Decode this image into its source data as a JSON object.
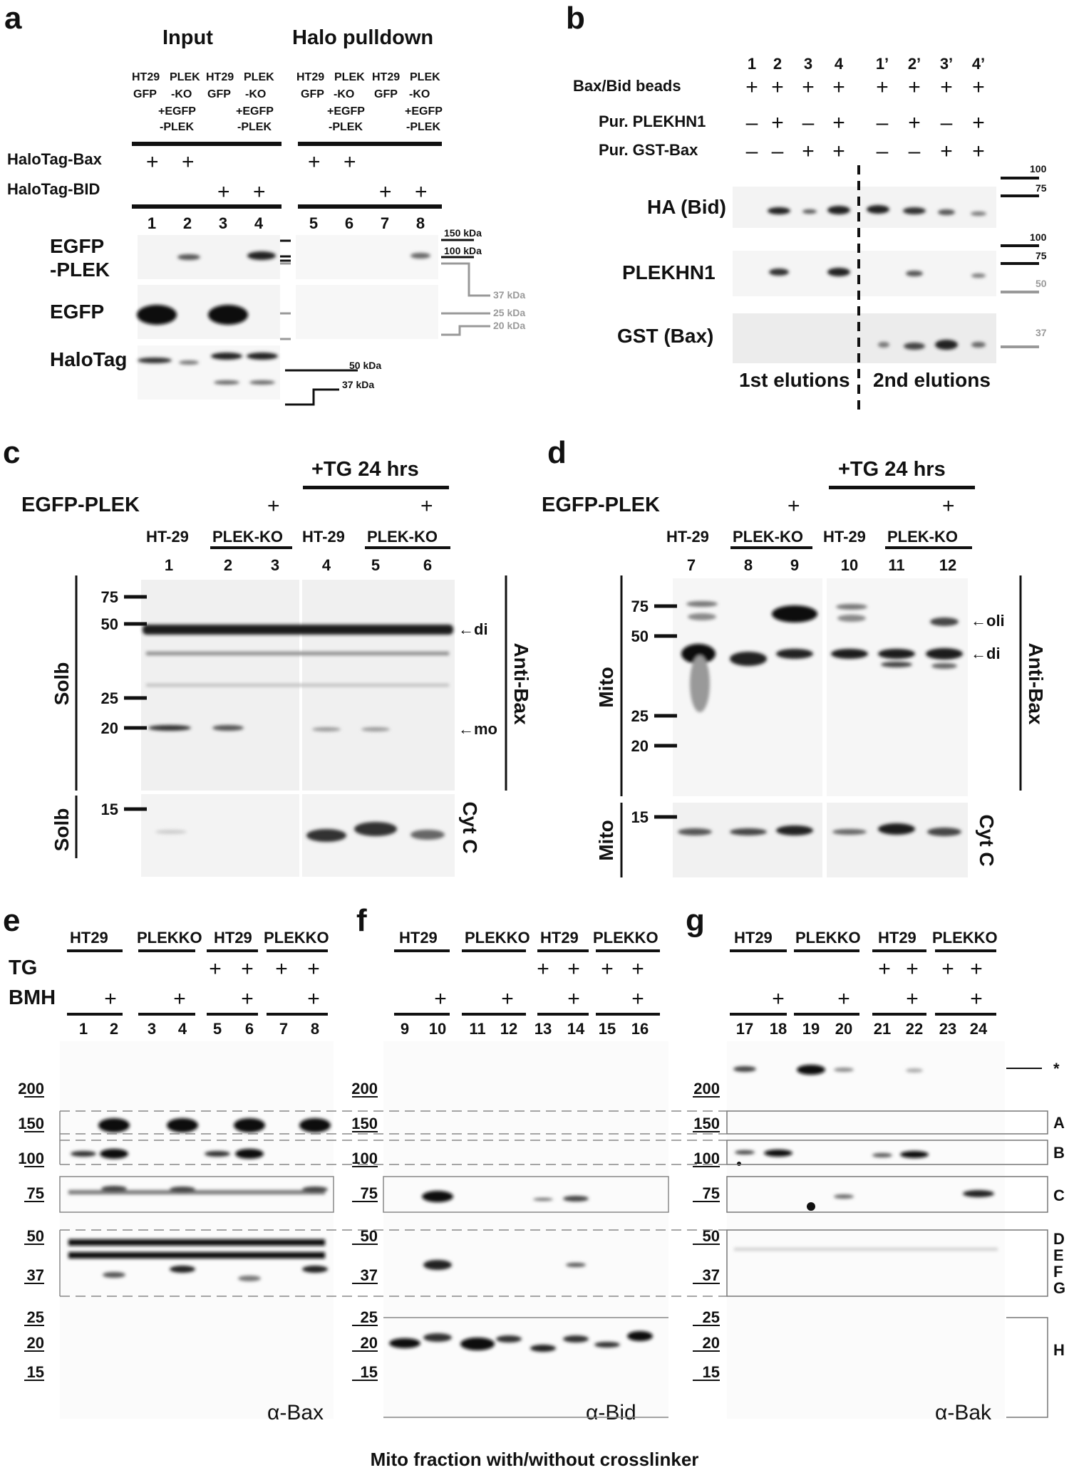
{
  "panels": {
    "a": {
      "letter": "a",
      "input_title": "Input",
      "pulldown_title": "Halo pulldown",
      "cell_labels": [
        "HT29",
        "PLEK",
        "GFP",
        "-KO",
        "+EGFP",
        "-PLEK"
      ],
      "row_labels": [
        "HaloTag-Bax",
        "HaloTag-BID"
      ],
      "plus": "+",
      "lanes": [
        "1",
        "2",
        "3",
        "4",
        "5",
        "6",
        "7",
        "8"
      ],
      "blot_labels": [
        "EGFP",
        "-PLEK",
        "EGFP",
        "HaloTag"
      ],
      "markers": [
        "150 kDa",
        "100 kDa",
        "37 kDa",
        "25 kDa",
        "20 kDa",
        "50 kDa",
        "37 kDa"
      ]
    },
    "b": {
      "letter": "b",
      "lanes": [
        "1",
        "2",
        "3",
        "4",
        "1’",
        "2’",
        "3’",
        "4’"
      ],
      "rows": [
        "Bax/Bid beads",
        "Pur. PLEKHN1",
        "Pur. GST-Bax"
      ],
      "signs": {
        "row1": [
          "+",
          "+",
          "+",
          "+",
          "+",
          "+",
          "+",
          "+"
        ],
        "row2": [
          "–",
          "+",
          "–",
          "+",
          "–",
          "+",
          "–",
          "+"
        ],
        "row3": [
          "–",
          "–",
          "+",
          "+",
          "–",
          "–",
          "+",
          "+"
        ]
      },
      "blot_labels": [
        "HA (Bid)",
        "PLEKHN1",
        "GST (Bax)"
      ],
      "markers": [
        "100",
        "75",
        "100",
        "75",
        "50",
        "37"
      ],
      "footer": [
        "1st elutions",
        "2nd elutions"
      ]
    },
    "c": {
      "letter": "c",
      "treatment": "+TG 24 hrs",
      "row_label": "EGFP-PLEK",
      "plus": "+",
      "cell_lines": [
        "HT-29",
        "PLEK-KO",
        "HT-29",
        "PLEK-KO"
      ],
      "lanes": [
        "1",
        "2",
        "3",
        "4",
        "5",
        "6"
      ],
      "fraction": [
        "Solb",
        "Solb"
      ],
      "markers": [
        "75",
        "50",
        "25",
        "20",
        "15"
      ],
      "bands": [
        "←di",
        "←mo"
      ],
      "antibodies": [
        "Anti-Bax",
        "Cyt C"
      ]
    },
    "d": {
      "letter": "d",
      "treatment": "+TG 24 hrs",
      "row_label": "EGFP-PLEK",
      "plus": "+",
      "cell_lines": [
        "HT-29",
        "PLEK-KO",
        "HT-29",
        "PLEK-KO"
      ],
      "lanes": [
        "7",
        "8",
        "9",
        "10",
        "11",
        "12"
      ],
      "fraction": [
        "Mito",
        "Mito"
      ],
      "markers": [
        "75",
        "50",
        "25",
        "20",
        "15"
      ],
      "bands": [
        "←oli",
        "←di"
      ],
      "antibodies": [
        "Anti-Bax",
        "Cyt C"
      ]
    },
    "e": {
      "letter": "e",
      "groups": [
        "HT29",
        "PLEKKO",
        "HT29",
        "PLEKKO"
      ],
      "rows": [
        "TG",
        "BMH"
      ],
      "plus": "+",
      "lanes": [
        "1",
        "2",
        "3",
        "4",
        "5",
        "6",
        "7",
        "8"
      ],
      "markers": [
        "200",
        "150",
        "100",
        "75",
        "50",
        "37",
        "25",
        "20",
        "15"
      ],
      "antibody": "α-Bax"
    },
    "f": {
      "letter": "f",
      "groups": [
        "HT29",
        "PLEKKO",
        "HT29",
        "PLEKKO"
      ],
      "plus": "+",
      "lanes": [
        "9",
        "10",
        "11",
        "12",
        "13",
        "14",
        "15",
        "16"
      ],
      "markers": [
        "200",
        "150",
        "100",
        "75",
        "50",
        "37",
        "25",
        "20",
        "15"
      ],
      "antibody": "α-Bid"
    },
    "g": {
      "letter": "g",
      "groups": [
        "HT29",
        "PLEKKO",
        "HT29",
        "PLEKKO"
      ],
      "plus": "+",
      "lanes": [
        "17",
        "18",
        "19",
        "20",
        "21",
        "22",
        "23",
        "24"
      ],
      "markers": [
        "200",
        "150",
        "100",
        "75",
        "50",
        "37",
        "25",
        "20",
        "15"
      ],
      "box_labels": [
        "*",
        "A",
        "B",
        "C",
        "D",
        "E",
        "F",
        "G",
        "H"
      ],
      "antibody": "α-Bak"
    }
  },
  "caption": "Mito fraction with/without crosslinker"
}
